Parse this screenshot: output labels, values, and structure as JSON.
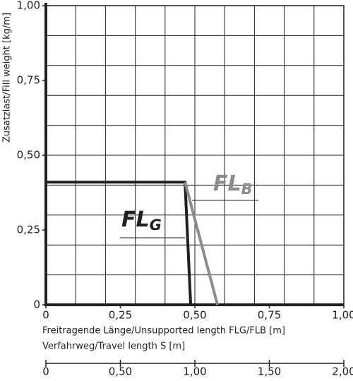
{
  "chart_data": {
    "type": "line",
    "xlabel": "Freitragende Länge/Unsupported length FLG/FLB [m]",
    "ylabel": "Zusatzlast/Fill weight [kg/m]",
    "xlim": [
      0,
      1
    ],
    "ylim": [
      0,
      1
    ],
    "xticks": [
      0,
      {
        "value": 0.25,
        "label": "0,25"
      },
      {
        "value": 0.5,
        "label": "0,50"
      },
      {
        "value": 0.75,
        "label": "0,75"
      },
      {
        "value": 1,
        "label": "1,00"
      }
    ],
    "yticks": [
      0,
      {
        "value": 0.25,
        "label": "0,25"
      },
      {
        "value": 0.5,
        "label": "0,50"
      },
      {
        "value": 0.75,
        "label": "0,75"
      },
      {
        "value": 1,
        "label": "1,00"
      }
    ],
    "grid": true,
    "x2label": "Verfahrweg/Travel length S [m]",
    "x2lim": [
      0,
      2
    ],
    "x2ticks": [
      0,
      {
        "value": 0.5,
        "label": "0,50"
      },
      {
        "value": 1,
        "label": "1,00"
      },
      {
        "value": 1.5,
        "label": "1,50"
      },
      {
        "value": 2,
        "label": "2,00"
      }
    ],
    "series": [
      {
        "name": "FLG",
        "color": "#231f20",
        "x": [
          0,
          0.467,
          0.486
        ],
        "values": [
          0.41,
          0.41,
          0
        ]
      },
      {
        "name": "FLB",
        "color": "#8c8c8c",
        "x": [
          0.467,
          0.576
        ],
        "values": [
          0.41,
          0
        ]
      }
    ]
  }
}
